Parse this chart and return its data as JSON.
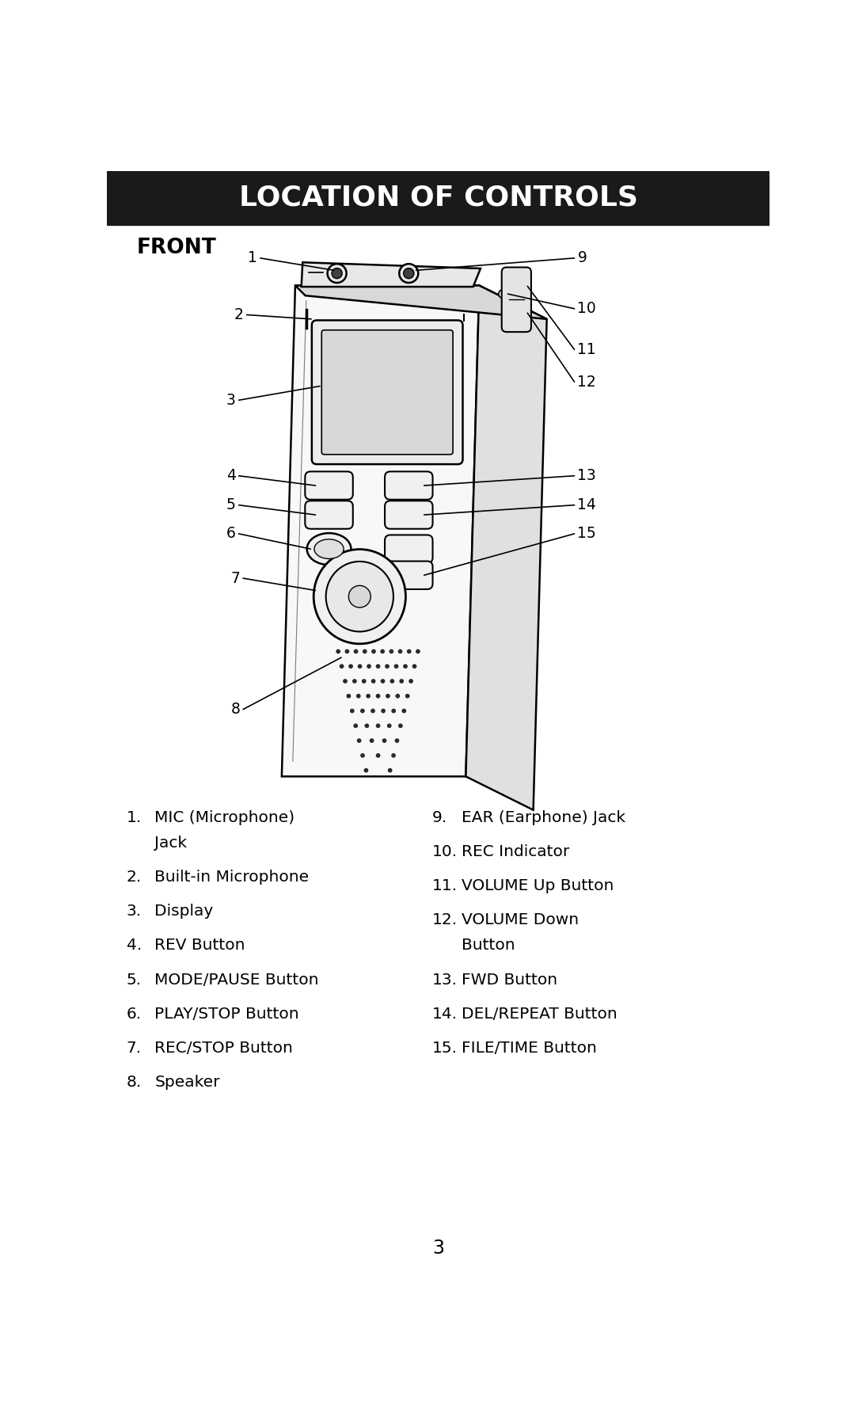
{
  "title": "LOCATION OF CONTROLS",
  "section": "FRONT",
  "page_number": "3",
  "background_color": "#ffffff",
  "title_bg_color": "#1a1a1a",
  "title_text_color": "#ffffff",
  "left_items": [
    {
      "num": "1.",
      "text": "MIC (Microphone)\nJack"
    },
    {
      "num": "2.",
      "text": "Built-in Microphone"
    },
    {
      "num": "3.",
      "text": "Display"
    },
    {
      "num": "4.",
      "text": "REV Button"
    },
    {
      "num": "5.",
      "text": "MODE/PAUSE Button"
    },
    {
      "num": "6.",
      "text": "PLAY/STOP Button"
    },
    {
      "num": "7.",
      "text": "REC/STOP Button"
    },
    {
      "num": "8.",
      "text": "Speaker"
    }
  ],
  "right_items": [
    {
      "num": "9.",
      "text": "EAR (Earphone) Jack"
    },
    {
      "num": "10.",
      "text": "REC Indicator"
    },
    {
      "num": "11.",
      "text": "VOLUME Up Button"
    },
    {
      "num": "12.",
      "text": "VOLUME Down\nButton"
    },
    {
      "num": "13.",
      "text": "FWD Button"
    },
    {
      "num": "14.",
      "text": "DEL/REPEAT Button"
    },
    {
      "num": "15.",
      "text": "FILE/TIME Button"
    }
  ],
  "device_color": "#000000",
  "line_color": "#000000"
}
